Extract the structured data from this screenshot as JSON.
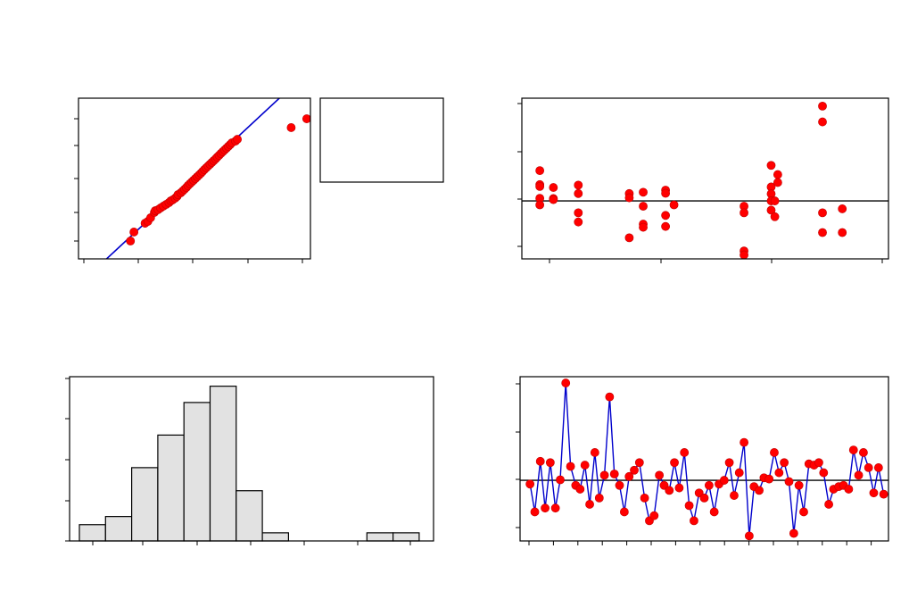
{
  "colors": {
    "marker": "#ff0000",
    "marker_edge": "#c00000",
    "fit_line": "#0000cc",
    "series_line": "#0000cc",
    "reference_line": "#000000",
    "bar_fill": "#e2e2e2",
    "bar_edge": "#000000",
    "frame": "#000000"
  },
  "chart_data": [
    {
      "id": "normal-probability",
      "type": "scatter",
      "title": "",
      "xlabel": "",
      "ylabel": "",
      "xlim": [
        0,
        100
      ],
      "ylim": [
        0,
        100
      ],
      "fit_line": {
        "x": [
          12.1,
          86.6
        ],
        "y": [
          0,
          100
        ]
      },
      "points": [
        [
          22.4,
          11.1
        ],
        [
          23.9,
          16.7
        ],
        [
          28.7,
          22.2
        ],
        [
          29.9,
          23.3
        ],
        [
          31.1,
          25.6
        ],
        [
          32.7,
          28.9
        ],
        [
          33.1,
          30.0
        ],
        [
          34.3,
          30.6
        ],
        [
          35.4,
          31.7
        ],
        [
          36.6,
          32.8
        ],
        [
          37.8,
          33.9
        ],
        [
          39.0,
          35.0
        ],
        [
          39.8,
          36.1
        ],
        [
          40.6,
          36.7
        ],
        [
          41.7,
          37.8
        ],
        [
          42.5,
          38.9
        ],
        [
          42.9,
          40.0
        ],
        [
          44.1,
          41.1
        ],
        [
          44.9,
          42.2
        ],
        [
          45.7,
          43.3
        ],
        [
          46.5,
          44.4
        ],
        [
          47.2,
          45.6
        ],
        [
          48.0,
          46.7
        ],
        [
          48.8,
          47.8
        ],
        [
          49.6,
          48.9
        ],
        [
          50.4,
          50.0
        ],
        [
          51.2,
          51.1
        ],
        [
          52.0,
          52.2
        ],
        [
          52.8,
          53.3
        ],
        [
          53.5,
          54.4
        ],
        [
          54.3,
          55.6
        ],
        [
          55.1,
          56.7
        ],
        [
          55.9,
          57.8
        ],
        [
          56.7,
          58.9
        ],
        [
          57.5,
          60.0
        ],
        [
          58.3,
          61.1
        ],
        [
          59.1,
          62.2
        ],
        [
          59.8,
          63.3
        ],
        [
          60.6,
          64.4
        ],
        [
          61.4,
          65.6
        ],
        [
          62.2,
          66.7
        ],
        [
          63.0,
          67.8
        ],
        [
          63.8,
          68.9
        ],
        [
          64.6,
          70.0
        ],
        [
          65.4,
          71.1
        ],
        [
          66.1,
          72.2
        ],
        [
          67.7,
          73.3
        ],
        [
          68.5,
          74.4
        ],
        [
          91.7,
          81.7
        ],
        [
          98.4,
          87.2
        ]
      ]
    },
    {
      "id": "legend-box",
      "type": "table",
      "rows": []
    },
    {
      "id": "residuals-vs-fits",
      "type": "scatter",
      "title": "",
      "xlabel": "",
      "ylabel": "",
      "xlim": [
        0,
        100
      ],
      "ylim": [
        -2.2,
        3.9
      ],
      "reference_y": 0,
      "points": [
        [
          4.9,
          1.15
        ],
        [
          4.9,
          0.62
        ],
        [
          4.9,
          0.55
        ],
        [
          4.9,
          0.1
        ],
        [
          4.9,
          -0.15
        ],
        [
          8.6,
          0.51
        ],
        [
          8.6,
          0.09
        ],
        [
          8.6,
          0.05
        ],
        [
          15.4,
          0.6
        ],
        [
          15.4,
          0.28
        ],
        [
          15.4,
          -0.45
        ],
        [
          15.4,
          -0.8
        ],
        [
          29.3,
          0.28
        ],
        [
          29.3,
          0.12
        ],
        [
          29.3,
          -1.4
        ],
        [
          33.1,
          0.33
        ],
        [
          33.1,
          -0.2
        ],
        [
          33.1,
          -0.88
        ],
        [
          33.1,
          -1.0
        ],
        [
          39.2,
          0.41
        ],
        [
          39.2,
          0.29
        ],
        [
          39.2,
          -0.55
        ],
        [
          39.2,
          -0.97
        ],
        [
          41.5,
          -0.15
        ],
        [
          60.6,
          -0.2
        ],
        [
          60.6,
          -0.45
        ],
        [
          60.6,
          -1.9
        ],
        [
          60.6,
          -2.05
        ],
        [
          68.0,
          1.35
        ],
        [
          68.0,
          0.53
        ],
        [
          68.0,
          0.27
        ],
        [
          68.0,
          0.0
        ],
        [
          68.0,
          -0.35
        ],
        [
          69.0,
          -0.6
        ],
        [
          69.0,
          0.0
        ],
        [
          69.8,
          1.0
        ],
        [
          69.8,
          0.7
        ],
        [
          82.0,
          3.6
        ],
        [
          82.0,
          3.0
        ],
        [
          82.0,
          -0.45
        ],
        [
          82.0,
          -1.2
        ],
        [
          87.4,
          -0.3
        ],
        [
          87.4,
          -1.2
        ]
      ]
    },
    {
      "id": "histogram",
      "type": "bar",
      "title": "",
      "xlabel": "",
      "ylabel": "",
      "ylim": [
        0,
        12.1
      ],
      "bins": 13,
      "values": [
        1.2,
        1.8,
        5.4,
        7.8,
        10.2,
        11.4,
        3.7,
        0.6,
        0,
        0,
        0,
        0.6,
        0.6
      ]
    },
    {
      "id": "residuals-vs-order",
      "type": "line",
      "title": "",
      "xlabel": "",
      "ylabel": "",
      "xlim": [
        0,
        100
      ],
      "ylim": [
        -2.4,
        4.1
      ],
      "reference_y": 0,
      "points": [
        [
          2.7,
          -0.15
        ],
        [
          4.0,
          -1.25
        ],
        [
          5.5,
          0.75
        ],
        [
          6.8,
          -1.1
        ],
        [
          8.2,
          0.7
        ],
        [
          9.6,
          -1.1
        ],
        [
          10.9,
          0.02
        ],
        [
          12.4,
          3.85
        ],
        [
          13.7,
          0.55
        ],
        [
          15.1,
          -0.2
        ],
        [
          16.3,
          -0.35
        ],
        [
          17.6,
          0.6
        ],
        [
          18.9,
          -0.95
        ],
        [
          20.3,
          1.1
        ],
        [
          21.5,
          -0.7
        ],
        [
          22.9,
          0.2
        ],
        [
          24.3,
          3.3
        ],
        [
          25.6,
          0.25
        ],
        [
          27.0,
          -0.2
        ],
        [
          28.3,
          -1.25
        ],
        [
          29.6,
          0.15
        ],
        [
          31.0,
          0.4
        ],
        [
          32.4,
          0.7
        ],
        [
          33.8,
          -0.7
        ],
        [
          35.1,
          -1.6
        ],
        [
          36.4,
          -1.4
        ],
        [
          37.8,
          0.2
        ],
        [
          39.1,
          -0.2
        ],
        [
          40.5,
          -0.4
        ],
        [
          41.9,
          0.7
        ],
        [
          43.2,
          -0.3
        ],
        [
          44.6,
          1.1
        ],
        [
          45.9,
          -1.0
        ],
        [
          47.2,
          -1.6
        ],
        [
          48.6,
          -0.5
        ],
        [
          50.0,
          -0.7
        ],
        [
          51.3,
          -0.2
        ],
        [
          52.7,
          -1.25
        ],
        [
          54.0,
          -0.15
        ],
        [
          55.4,
          0.0
        ],
        [
          56.8,
          0.7
        ],
        [
          58.1,
          -0.6
        ],
        [
          59.5,
          0.3
        ],
        [
          60.8,
          1.5
        ],
        [
          62.2,
          -2.2
        ],
        [
          63.5,
          -0.25
        ],
        [
          64.9,
          -0.4
        ],
        [
          66.2,
          0.1
        ],
        [
          67.6,
          0.05
        ],
        [
          69.0,
          1.1
        ],
        [
          70.3,
          0.3
        ],
        [
          71.7,
          0.7
        ],
        [
          73.0,
          -0.05
        ],
        [
          74.3,
          -2.1
        ],
        [
          75.7,
          -0.2
        ],
        [
          77.0,
          -1.25
        ],
        [
          78.4,
          0.65
        ],
        [
          79.8,
          0.6
        ],
        [
          81.1,
          0.7
        ],
        [
          82.4,
          0.3
        ],
        [
          83.8,
          -0.95
        ],
        [
          85.1,
          -0.35
        ],
        [
          86.5,
          -0.25
        ],
        [
          87.8,
          -0.2
        ],
        [
          89.2,
          -0.35
        ],
        [
          90.5,
          1.2
        ],
        [
          91.9,
          0.2
        ],
        [
          93.2,
          1.1
        ],
        [
          94.6,
          0.5
        ],
        [
          96.0,
          -0.5
        ],
        [
          97.3,
          0.5
        ],
        [
          98.7,
          -0.55
        ]
      ]
    }
  ]
}
